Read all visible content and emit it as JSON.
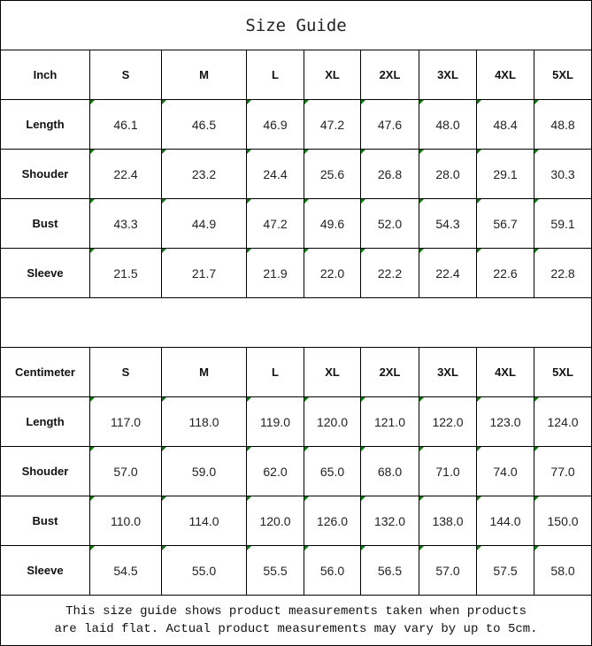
{
  "title": "Size Guide",
  "sizes": [
    "S",
    "M",
    "L",
    "XL",
    "2XL",
    "3XL",
    "4XL",
    "5XL"
  ],
  "tables": [
    {
      "unit": "Inch",
      "rows": [
        {
          "label": "Length",
          "values": [
            "46.1",
            "46.5",
            "46.9",
            "47.2",
            "47.6",
            "48.0",
            "48.4",
            "48.8"
          ]
        },
        {
          "label": "Shouder",
          "values": [
            "22.4",
            "23.2",
            "24.4",
            "25.6",
            "26.8",
            "28.0",
            "29.1",
            "30.3"
          ]
        },
        {
          "label": "Bust",
          "values": [
            "43.3",
            "44.9",
            "47.2",
            "49.6",
            "52.0",
            "54.3",
            "56.7",
            "59.1"
          ]
        },
        {
          "label": "Sleeve",
          "values": [
            "21.5",
            "21.7",
            "21.9",
            "22.0",
            "22.2",
            "22.4",
            "22.6",
            "22.8"
          ]
        }
      ]
    },
    {
      "unit": "Centimeter",
      "rows": [
        {
          "label": "Length",
          "values": [
            "117.0",
            "118.0",
            "119.0",
            "120.0",
            "121.0",
            "122.0",
            "123.0",
            "124.0"
          ]
        },
        {
          "label": "Shouder",
          "values": [
            "57.0",
            "59.0",
            "62.0",
            "65.0",
            "68.0",
            "71.0",
            "74.0",
            "77.0"
          ]
        },
        {
          "label": "Bust",
          "values": [
            "110.0",
            "114.0",
            "120.0",
            "126.0",
            "132.0",
            "138.0",
            "144.0",
            "150.0"
          ]
        },
        {
          "label": "Sleeve",
          "values": [
            "54.5",
            "55.0",
            "55.5",
            "56.0",
            "56.5",
            "57.0",
            "57.5",
            "58.0"
          ]
        }
      ]
    }
  ],
  "note": [
    "This size guide shows product measurements taken when products",
    "are laid flat. Actual product measurements may vary by up to 5cm."
  ]
}
